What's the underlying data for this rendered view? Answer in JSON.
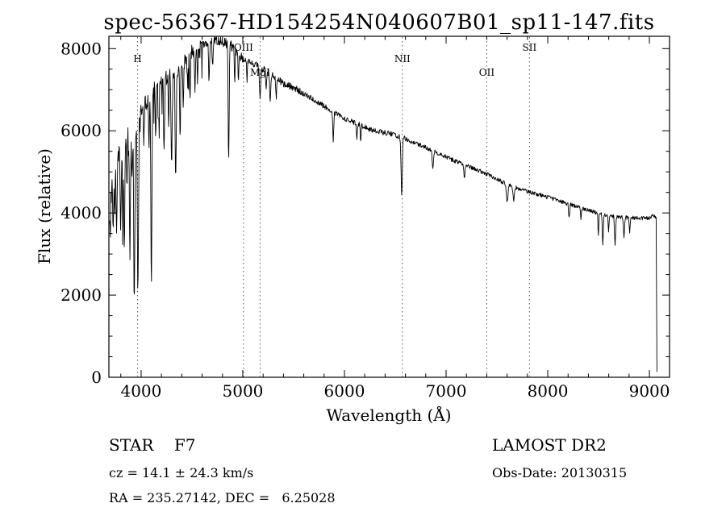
{
  "title": "spec-56367-HD154254N040607B01_sp11-147.fits",
  "footer": {
    "class_label": "STAR    F7",
    "survey": "LAMOST DR2",
    "cz": "cz = 14.1 ± 24.3 km/s",
    "obs_date": "Obs-Date: 20130315",
    "radec": "RA = 235.27142, DEC =   6.25028"
  },
  "colors": {
    "line": "#000000",
    "marker_line": "#555555",
    "axis": "#000000",
    "background": "#ffffff"
  },
  "chart_data": {
    "type": "line",
    "title": "spec-56367-HD154254N040607B01_sp11-147.fits",
    "xlabel": "Wavelength (Å)",
    "ylabel": "Flux (relative)",
    "xlim": [
      3683,
      9198
    ],
    "ylim": [
      0,
      8300
    ],
    "xticks": [
      4000,
      5000,
      6000,
      7000,
      8000,
      9000
    ],
    "yticks": [
      0,
      2000,
      4000,
      6000,
      8000
    ],
    "x_minor_step": 200,
    "y_minor_step": 500,
    "grid": false,
    "legend": "none",
    "markers": [
      {
        "label": "H",
        "wavelength": 3965,
        "level": 1
      },
      {
        "label": "OIII",
        "wavelength": 5007,
        "level": 0
      },
      {
        "label": "MgI",
        "wavelength": 5170,
        "level": 2
      },
      {
        "label": "NII",
        "wavelength": 6570,
        "level": 1
      },
      {
        "label": "OII",
        "wavelength": 7400,
        "level": 2
      },
      {
        "label": "SII",
        "wavelength": 7820,
        "level": 0
      }
    ],
    "series": [
      {
        "name": "spectrum",
        "sample_step": 4,
        "wavelength_range": [
          3690,
          9074
        ],
        "continuum": [
          [
            3690,
            3600
          ],
          [
            3700,
            4300
          ],
          [
            3720,
            4900
          ],
          [
            3750,
            5200
          ],
          [
            3800,
            5500
          ],
          [
            3850,
            5800
          ],
          [
            3900,
            6000
          ],
          [
            3950,
            6200
          ],
          [
            4000,
            6500
          ],
          [
            4100,
            6900
          ],
          [
            4200,
            7200
          ],
          [
            4300,
            7400
          ],
          [
            4400,
            7600
          ],
          [
            4500,
            7900
          ],
          [
            4600,
            8100
          ],
          [
            4700,
            8200
          ],
          [
            4780,
            8180
          ],
          [
            4850,
            8120
          ],
          [
            4900,
            8050
          ],
          [
            5000,
            7750
          ],
          [
            5100,
            7650
          ],
          [
            5200,
            7500
          ],
          [
            5300,
            7350
          ],
          [
            5400,
            7150
          ],
          [
            5500,
            7050
          ],
          [
            5600,
            6900
          ],
          [
            5700,
            6750
          ],
          [
            5800,
            6600
          ],
          [
            5900,
            6450
          ],
          [
            6000,
            6300
          ],
          [
            6100,
            6200
          ],
          [
            6200,
            6100
          ],
          [
            6300,
            6000
          ],
          [
            6400,
            5950
          ],
          [
            6500,
            5900
          ],
          [
            6600,
            5800
          ],
          [
            6700,
            5700
          ],
          [
            6800,
            5600
          ],
          [
            6900,
            5480
          ],
          [
            7000,
            5360
          ],
          [
            7100,
            5250
          ],
          [
            7200,
            5150
          ],
          [
            7300,
            5050
          ],
          [
            7400,
            4950
          ],
          [
            7500,
            4820
          ],
          [
            7600,
            4700
          ],
          [
            7700,
            4600
          ],
          [
            7800,
            4520
          ],
          [
            7900,
            4450
          ],
          [
            8000,
            4380
          ],
          [
            8100,
            4300
          ],
          [
            8200,
            4220
          ],
          [
            8300,
            4150
          ],
          [
            8400,
            4060
          ],
          [
            8500,
            3990
          ],
          [
            8600,
            3930
          ],
          [
            8700,
            3900
          ],
          [
            8800,
            3880
          ],
          [
            8900,
            3870
          ],
          [
            9000,
            3880
          ],
          [
            9040,
            3930
          ],
          [
            9064,
            3880
          ],
          [
            9066,
            3850
          ],
          [
            9074,
            150
          ]
        ],
        "absorption_lines": [
          [
            3726,
            1400,
            5
          ],
          [
            3740,
            1000,
            4
          ],
          [
            3760,
            1600,
            5
          ],
          [
            3798,
            2000,
            5
          ],
          [
            3820,
            1200,
            4
          ],
          [
            3835,
            2600,
            5
          ],
          [
            3860,
            1400,
            4
          ],
          [
            3889,
            3000,
            5
          ],
          [
            3910,
            1200,
            4
          ],
          [
            3933,
            4300,
            6
          ],
          [
            3968,
            4200,
            6
          ],
          [
            4026,
            1100,
            4
          ],
          [
            4077,
            1300,
            4
          ],
          [
            4101,
            4800,
            5
          ],
          [
            4144,
            1100,
            4
          ],
          [
            4172,
            900,
            4
          ],
          [
            4226,
            1700,
            5
          ],
          [
            4271,
            1100,
            4
          ],
          [
            4300,
            2100,
            6
          ],
          [
            4340,
            2900,
            5
          ],
          [
            4383,
            1900,
            4
          ],
          [
            4415,
            1200,
            4
          ],
          [
            4457,
            800,
            4
          ],
          [
            4481,
            900,
            4
          ],
          [
            4530,
            1000,
            5
          ],
          [
            4554,
            800,
            4
          ],
          [
            4668,
            900,
            5
          ],
          [
            4703,
            700,
            4
          ],
          [
            4861,
            2900,
            5
          ],
          [
            4920,
            800,
            4
          ],
          [
            4957,
            600,
            4
          ],
          [
            5041,
            500,
            4
          ],
          [
            5170,
            800,
            6
          ],
          [
            5230,
            500,
            4
          ],
          [
            5270,
            700,
            5
          ],
          [
            5328,
            500,
            4
          ],
          [
            5890,
            700,
            5
          ],
          [
            6122,
            400,
            4
          ],
          [
            6160,
            400,
            4
          ],
          [
            6563,
            1350,
            6
          ],
          [
            6870,
            450,
            6
          ],
          [
            7180,
            300,
            6
          ],
          [
            7600,
            450,
            8
          ],
          [
            7665,
            350,
            6
          ],
          [
            8210,
            350,
            5
          ],
          [
            8327,
            300,
            4
          ],
          [
            8498,
            550,
            4
          ],
          [
            8542,
            750,
            5
          ],
          [
            8598,
            400,
            4
          ],
          [
            8662,
            700,
            5
          ],
          [
            8750,
            450,
            5
          ],
          [
            8806,
            350,
            4
          ]
        ],
        "noise": {
          "seed": 20130315,
          "amps": [
            [
              4000,
              280
            ],
            [
              4500,
              210
            ],
            [
              5000,
              125
            ],
            [
              5600,
              85
            ],
            [
              6600,
              65
            ],
            [
              7600,
              55
            ],
            [
              10000,
              48
            ]
          ],
          "dip_prob": 0.12,
          "dip_max": 900,
          "dip_cutoff": 4600
        }
      }
    ]
  }
}
